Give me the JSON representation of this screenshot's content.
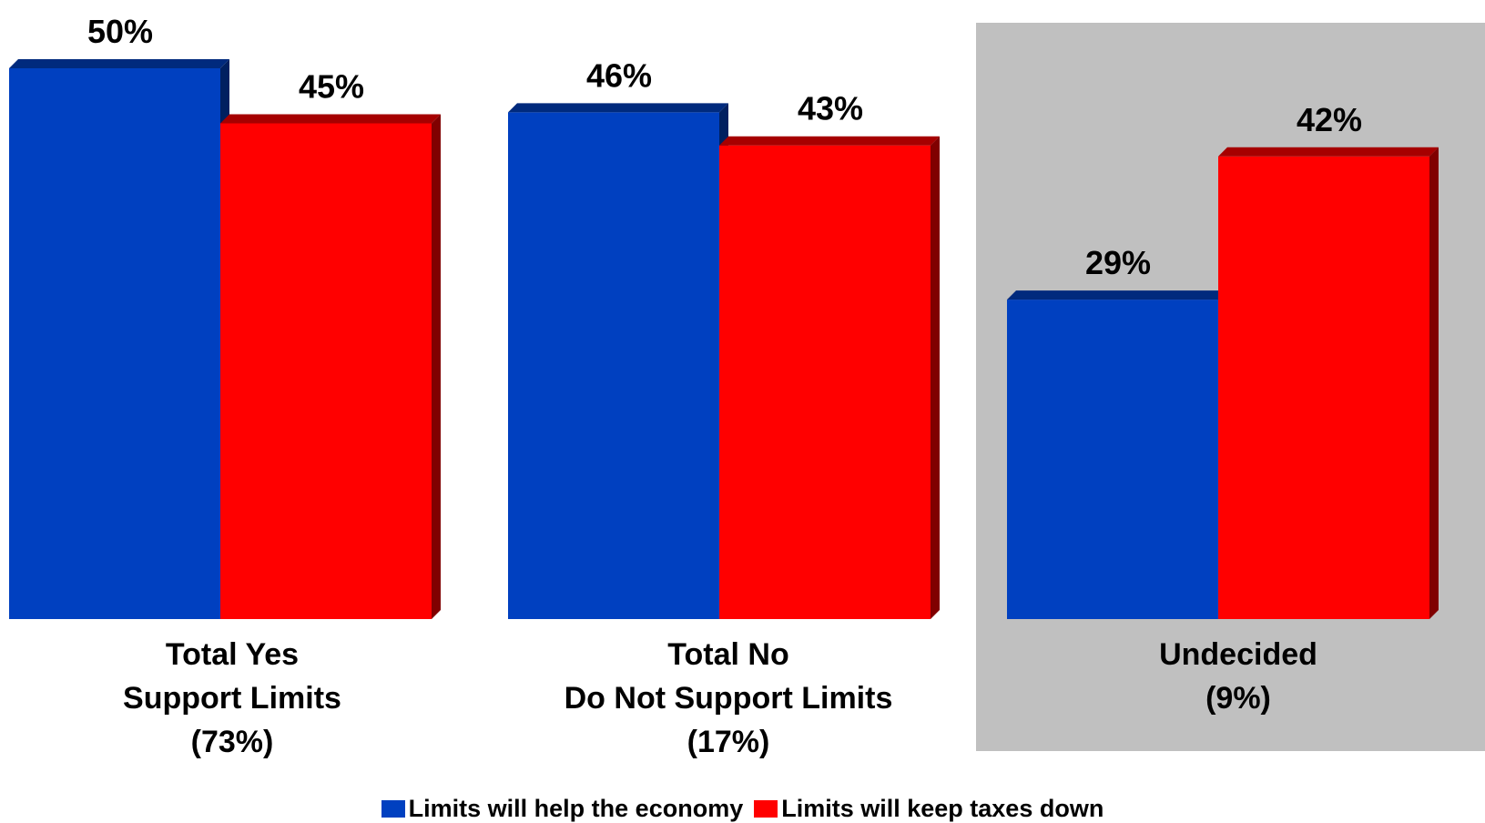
{
  "chart_data": {
    "type": "bar",
    "categories": [
      {
        "lines": [
          "Total Yes",
          "Support Limits",
          "(73%)"
        ]
      },
      {
        "lines": [
          "Total No",
          "Do Not Support Limits",
          "(17%)"
        ]
      },
      {
        "lines": [
          "Undecided",
          "(9%)"
        ],
        "highlighted": true
      }
    ],
    "series": [
      {
        "name": "Limits will help the economy",
        "values": [
          50,
          46,
          29
        ],
        "color": "#0040C0"
      },
      {
        "name": "Limits will keep taxes down",
        "values": [
          45,
          43,
          42
        ],
        "color": "#FF0000"
      }
    ],
    "value_labels": [
      [
        "50%",
        "46%",
        "29%"
      ],
      [
        "45%",
        "43%",
        "42%"
      ]
    ],
    "unit": "%",
    "highlight_color": "#C0C0C0",
    "legend_position": "bottom",
    "grid": false
  }
}
